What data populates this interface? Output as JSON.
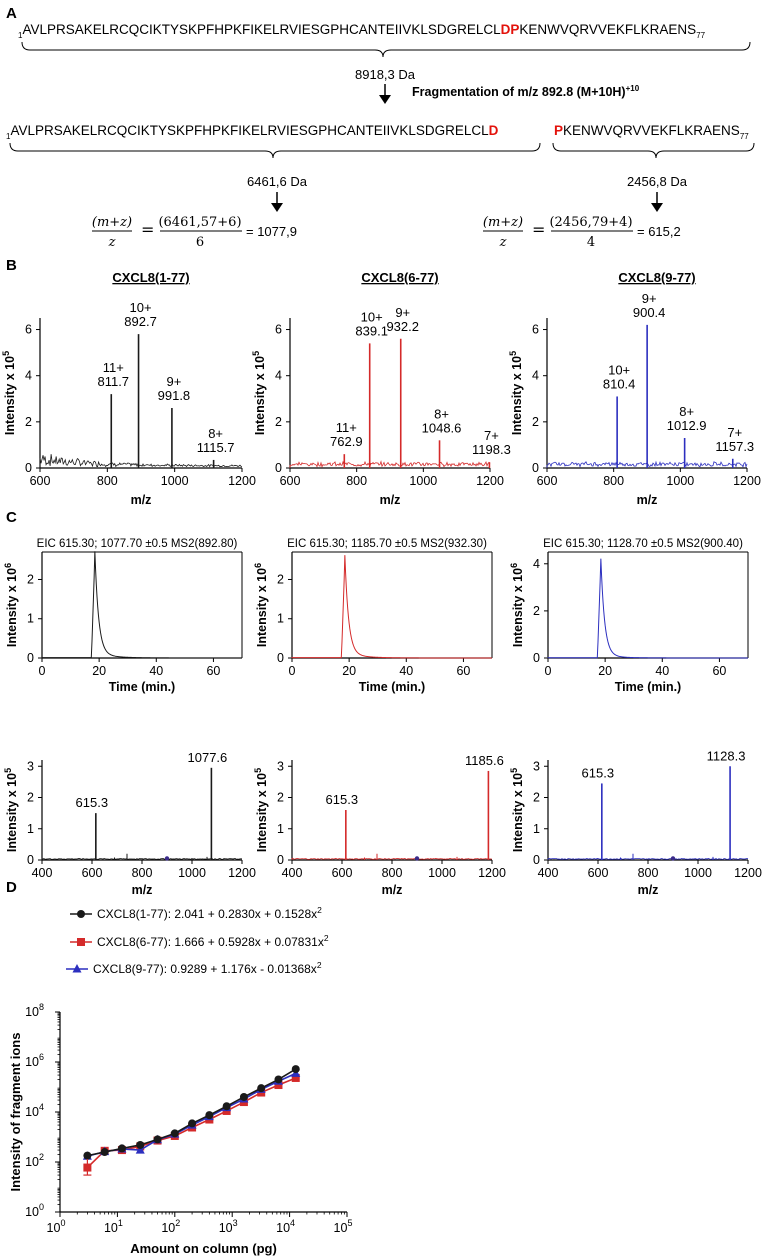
{
  "colors": {
    "black": "#1a1a1a",
    "red": "#d42a2a",
    "blue": "#2c2fbf",
    "seq_highlight": "#e3120b"
  },
  "panelA": {
    "label": "A",
    "seq_start": "1",
    "seq_full_pre": "AVLPRSAKELRCQCIKTYSKPFHPKFIKELRVIESGPHCANTEIIVKLSDGRELCL",
    "seq_full_hl": "DP",
    "seq_full_post": "KENWVQRVVEKFLKRAENS",
    "seq_full_end": "77",
    "mass_full": "8918,3  Da",
    "fragmentation": "Fragmentation of m/z 892.8 (M+10H)",
    "fragmentation_sup": "+10",
    "frag1_pre": "AVLPRSAKELRCQCIKTYSKPFHPKFIKELRVIESGPHCANTEIIVKLSDGRELCL",
    "frag1_hl": "D",
    "frag2_hl": "P",
    "frag2_post": "KENWVQRVVEKFLKRAENS",
    "mass_frag1": "6461,6 Da",
    "mass_frag2": "2456,8 Da",
    "eq_lhs_num": "(m+z)",
    "eq_lhs_den": "z",
    "eq_eq": "=",
    "eq1_num": "(6461,57+6)",
    "eq1_den": "6",
    "eq1_res": "= 1077,9",
    "eq2_num": "(2456,79+4)",
    "eq2_den": "4",
    "eq2_res": "= 615,2"
  },
  "panelB": {
    "label": "B"
  },
  "panelC": {
    "label": "C"
  },
  "panelD": {
    "label": "D"
  },
  "chart_data": [
    {
      "type": "line",
      "id": "B1",
      "title": "CXCL8(1-77)",
      "xlabel": "m/z",
      "ylabel": "Intensity x 10^5",
      "xlim": [
        600,
        1200
      ],
      "ylim": [
        0,
        6.5
      ],
      "xticks": [
        600,
        800,
        1000,
        1200
      ],
      "yticks": [
        0,
        2,
        4,
        6
      ],
      "color": "black",
      "peaks": [
        {
          "x": 811.7,
          "y": 3.2,
          "label": "11+",
          "value": "811.7"
        },
        {
          "x": 892.7,
          "y": 5.8,
          "label": "10+",
          "value": "892.7"
        },
        {
          "x": 991.8,
          "y": 2.6,
          "label": "9+",
          "value": "991.8"
        },
        {
          "x": 1115.7,
          "y": 0.35,
          "label": "8+",
          "value": "1115.7"
        }
      ]
    },
    {
      "type": "line",
      "id": "B2",
      "title": "CXCL8(6-77)",
      "xlabel": "m/z",
      "ylabel": "Intensity x 10^5",
      "xlim": [
        600,
        1200
      ],
      "ylim": [
        0,
        6.5
      ],
      "xticks": [
        600,
        800,
        1000,
        1200
      ],
      "yticks": [
        0,
        2,
        4,
        6
      ],
      "color": "red",
      "peaks": [
        {
          "x": 762.9,
          "y": 0.6,
          "label": "11+",
          "value": "762.9"
        },
        {
          "x": 839.1,
          "y": 5.4,
          "label": "10+",
          "value": "839.1"
        },
        {
          "x": 932.2,
          "y": 5.6,
          "label": "9+",
          "value": "932.2"
        },
        {
          "x": 1048.6,
          "y": 1.2,
          "label": "8+",
          "value": "1048.6"
        },
        {
          "x": 1198.3,
          "y": 0.25,
          "label": "7+",
          "value": "1198.3"
        }
      ]
    },
    {
      "type": "line",
      "id": "B3",
      "title": "CXCL8(9-77)",
      "xlabel": "m/z",
      "ylabel": "Intensity x 10^5",
      "xlim": [
        600,
        1200
      ],
      "ylim": [
        0,
        6.5
      ],
      "xticks": [
        600,
        800,
        1000,
        1200
      ],
      "yticks": [
        0,
        2,
        4,
        6
      ],
      "color": "blue",
      "peaks": [
        {
          "x": 810.4,
          "y": 3.1,
          "label": "10+",
          "value": "810.4"
        },
        {
          "x": 900.4,
          "y": 6.2,
          "label": "9+",
          "value": "900.4"
        },
        {
          "x": 1012.9,
          "y": 1.3,
          "label": "8+",
          "value": "1012.9"
        },
        {
          "x": 1157.3,
          "y": 0.4,
          "label": "7+",
          "value": "1157.3"
        }
      ]
    },
    {
      "type": "line",
      "id": "C1",
      "title": "EIC 615.30; 1077.70 ±0.5 MS2(892.80)",
      "xlabel": "Time (min.)",
      "ylabel": "Intensity x 10^6",
      "xlim": [
        0,
        70
      ],
      "ylim": [
        0,
        2.7
      ],
      "xticks": [
        0,
        20,
        40,
        60
      ],
      "yticks": [
        0,
        1,
        2
      ],
      "color": "black",
      "peak_time": 18.5,
      "peak_height": 2.6
    },
    {
      "type": "line",
      "id": "C2",
      "title": "EIC 615.30; 1185.70 ±0.5 MS2(932.30)",
      "xlabel": "Time (min.)",
      "ylabel": "Intensity x 10^6",
      "xlim": [
        0,
        70
      ],
      "ylim": [
        0,
        2.7
      ],
      "xticks": [
        0,
        20,
        40,
        60
      ],
      "yticks": [
        0,
        1,
        2
      ],
      "color": "red",
      "peak_time": 18.5,
      "peak_height": 2.5
    },
    {
      "type": "line",
      "id": "C3",
      "title": "EIC 615.30; 1128.70 ±0.5 MS2(900.40)",
      "xlabel": "Time (min.)",
      "ylabel": "Intensity x 10^6",
      "xlim": [
        0,
        70
      ],
      "ylim": [
        0,
        4.5
      ],
      "xticks": [
        0,
        20,
        40,
        60
      ],
      "yticks": [
        0,
        2,
        4
      ],
      "color": "blue",
      "peak_time": 18.5,
      "peak_height": 4.1
    },
    {
      "type": "line",
      "id": "C4",
      "xlabel": "m/z",
      "ylabel": "Intensity x 10^5",
      "xlim": [
        400,
        1200
      ],
      "ylim": [
        0,
        3.2
      ],
      "xticks": [
        400,
        600,
        800,
        1000,
        1200
      ],
      "yticks": [
        0,
        1,
        2,
        3
      ],
      "color": "black",
      "peaks": [
        {
          "x": 615.3,
          "y": 1.5,
          "value": "615.3"
        },
        {
          "x": 1077.6,
          "y": 2.95,
          "value": "1077.6"
        }
      ]
    },
    {
      "type": "line",
      "id": "C5",
      "xlabel": "m/z",
      "ylabel": "Intensity x 10^5",
      "xlim": [
        400,
        1200
      ],
      "ylim": [
        0,
        3.2
      ],
      "xticks": [
        400,
        600,
        800,
        1000,
        1200
      ],
      "yticks": [
        0,
        1,
        2,
        3
      ],
      "color": "red",
      "peaks": [
        {
          "x": 615.3,
          "y": 1.6,
          "value": "615.3"
        },
        {
          "x": 1185.6,
          "y": 2.85,
          "value": "1185.6"
        }
      ]
    },
    {
      "type": "line",
      "id": "C6",
      "xlabel": "m/z",
      "ylabel": "Intensity x 10^5",
      "xlim": [
        400,
        1200
      ],
      "ylim": [
        0,
        3.2
      ],
      "xticks": [
        400,
        600,
        800,
        1000,
        1200
      ],
      "yticks": [
        0,
        1,
        2,
        3
      ],
      "color": "blue",
      "peaks": [
        {
          "x": 615.3,
          "y": 2.45,
          "value": "615.3"
        },
        {
          "x": 1128.3,
          "y": 3.0,
          "value": "1128.3"
        }
      ]
    },
    {
      "type": "scatter",
      "id": "D",
      "xscale": "log",
      "yscale": "log",
      "xlabel": "Amount on column (pg)",
      "ylabel": "Intensity of fragment ions",
      "xlim_exp": [
        0,
        5
      ],
      "ylim_exp": [
        0,
        8
      ],
      "xticks": [
        "10",
        "10",
        "10",
        "10",
        "10",
        "10"
      ],
      "xtick_exp": [
        "0",
        "1",
        "2",
        "3",
        "4",
        "5"
      ],
      "yticks": [
        "10",
        "10",
        "10",
        "10",
        "10"
      ],
      "ytick_exp": [
        "0",
        "2",
        "4",
        "6",
        "8"
      ],
      "series": [
        {
          "name": "CXCL8(1-77)",
          "label": "CXCL8(1-77): 2.041 + 0.2830x + 0.1528x",
          "label_exp": "2",
          "marker": "circle",
          "color": "black",
          "x": [
            3,
            6,
            12,
            25,
            50,
            100,
            200,
            400,
            800,
            1600,
            3200,
            6400,
            12800
          ],
          "y": [
            180,
            250,
            350,
            480,
            800,
            1400,
            3500,
            7500,
            17000,
            40000,
            90000,
            200000,
            520000
          ]
        },
        {
          "name": "CXCL8(6-77)",
          "label": "CXCL8(6-77): 1.666 + 0.5928x + 0.07831x",
          "label_exp": "2",
          "marker": "square",
          "color": "red",
          "x": [
            3,
            6,
            12,
            25,
            50,
            100,
            200,
            400,
            800,
            1600,
            3200,
            6400,
            12800
          ],
          "y": [
            60,
            280,
            300,
            420,
            720,
            1100,
            2400,
            5000,
            11000,
            25000,
            60000,
            120000,
            230000
          ]
        },
        {
          "name": "CXCL8(9-77)",
          "label": "CXCL8(9-77): 0.9289 + 1.176x - 0.01368x",
          "label_exp": "2",
          "marker": "triangle",
          "color": "blue",
          "x": [
            3,
            6,
            12,
            25,
            50,
            100,
            200,
            400,
            800,
            1600,
            3200,
            6400,
            12800
          ],
          "y": [
            170,
            260,
            330,
            300,
            780,
            1300,
            3000,
            6500,
            15000,
            33000,
            80000,
            170000,
            350000
          ]
        }
      ]
    }
  ]
}
